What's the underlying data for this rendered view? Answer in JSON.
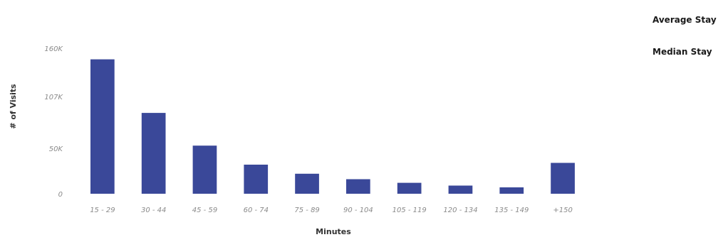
{
  "chart_data": {
    "type": "bar",
    "categories": [
      "15 - 29",
      "30 - 44",
      "45 - 59",
      "60 - 74",
      "75 - 89",
      "90 - 104",
      "105 - 119",
      "120 - 134",
      "135 - 149",
      "+150"
    ],
    "values": [
      148000,
      89000,
      53000,
      32000,
      22000,
      16000,
      12000,
      9000,
      7000,
      34000
    ],
    "xlabel": "Minutes",
    "ylabel": "# of Visits",
    "ylim": [
      0,
      200000
    ],
    "yticks": [
      0,
      50000,
      107000,
      160000
    ],
    "ytick_labels": [
      "0",
      "50K",
      "107K",
      "160K"
    ],
    "bar_color": "#3a4899",
    "legend": {
      "placement": "top-right",
      "items": [
        "Average Stay",
        "Median Stay"
      ]
    }
  }
}
